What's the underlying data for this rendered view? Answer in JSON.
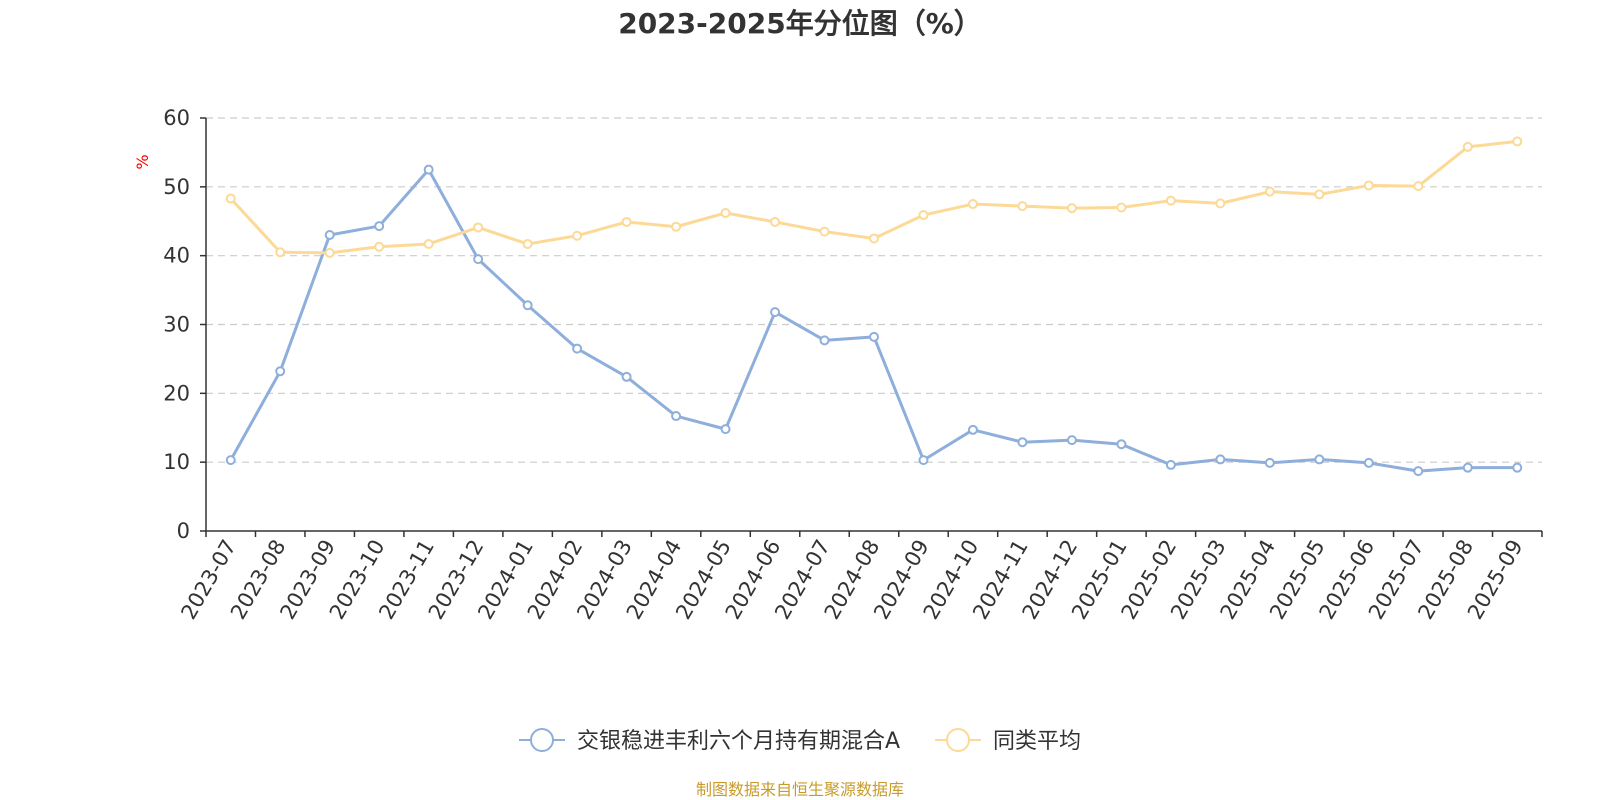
{
  "colors": {
    "fund": "#8eaedb",
    "peer": "#fcd996",
    "axis": "#333333",
    "grid": "#cccccc",
    "unit": "#ff0000",
    "source": "#c89b2c"
  },
  "footer": {
    "source": "制图数据来自恒生聚源数据库"
  },
  "chart_data": {
    "type": "line",
    "title": "2023-2025年分位图（%）",
    "ylabel": "%",
    "xlabel": "",
    "ylim": [
      0,
      60
    ],
    "yticks": [
      "0",
      "10",
      "20",
      "30",
      "40",
      "50",
      "60"
    ],
    "grid": true,
    "legend_position": "bottom",
    "categories": [
      "2023-07",
      "2023-08",
      "2023-09",
      "2023-10",
      "2023-11",
      "2023-12",
      "2024-01",
      "2024-02",
      "2024-03",
      "2024-04",
      "2024-05",
      "2024-06",
      "2024-07",
      "2024-08",
      "2024-09",
      "2024-10",
      "2024-11",
      "2024-12",
      "2025-01",
      "2025-02",
      "2025-03",
      "2025-04",
      "2025-05",
      "2025-06",
      "2025-07",
      "2025-08",
      "2025-09"
    ],
    "series": [
      {
        "name": "交银稳进丰利六个月持有期混合A",
        "color": "#8eaedb",
        "values": [
          10.3,
          23.2,
          43.0,
          44.3,
          52.5,
          39.5,
          32.8,
          26.5,
          22.4,
          16.7,
          14.8,
          31.8,
          27.7,
          28.2,
          10.3,
          14.7,
          12.9,
          13.2,
          12.6,
          9.6,
          10.4,
          9.9,
          10.4,
          9.9,
          8.7,
          9.2,
          9.2
        ]
      },
      {
        "name": "同类平均",
        "color": "#fcd996",
        "values": [
          48.3,
          40.5,
          40.4,
          41.3,
          41.7,
          44.1,
          41.7,
          42.9,
          44.9,
          44.2,
          46.2,
          44.9,
          43.5,
          42.5,
          45.9,
          47.5,
          47.2,
          46.9,
          47.0,
          48.0,
          47.6,
          49.3,
          48.9,
          50.2,
          50.1,
          55.8,
          56.6
        ]
      }
    ]
  }
}
